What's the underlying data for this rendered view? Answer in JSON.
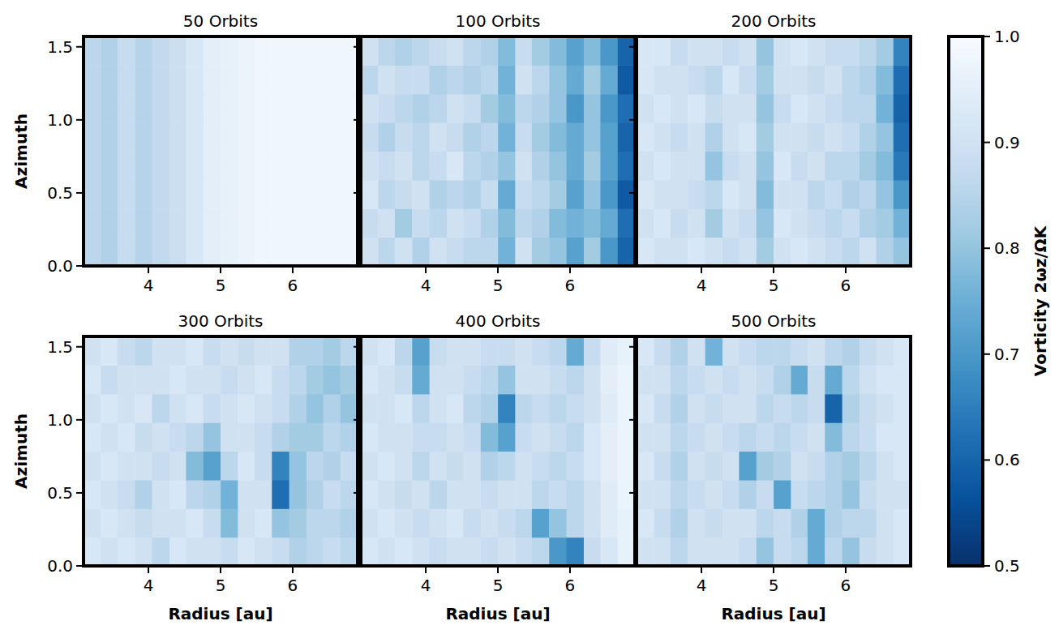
{
  "chart_data": {
    "type": "heatmap",
    "x_label": "Radius [au]",
    "y_label": "Azimuth",
    "xlim": [
      3.1,
      6.9
    ],
    "ylim": [
      0,
      1.5708
    ],
    "xticks": [
      4,
      5,
      6
    ],
    "yticks": [
      {
        "value": 0,
        "label": "0.0"
      },
      0.5,
      {
        "value": 1,
        "label": "1.0"
      },
      1.5
    ],
    "x": [
      3.22,
      3.46,
      3.69,
      3.93,
      4.17,
      4.41,
      4.64,
      4.88,
      5.12,
      5.36,
      5.59,
      5.83,
      6.07,
      6.31,
      6.54,
      6.78
    ],
    "y": [
      0.098,
      0.295,
      0.491,
      0.687,
      0.884,
      1.08,
      1.276,
      1.473
    ],
    "colorbar": {
      "label": "Vorticity 2ωz/ΩK",
      "range": [
        0.5,
        1.0
      ],
      "ticks": [
        0.5,
        0.6,
        0.7,
        0.8,
        0.9,
        {
          "value": 1,
          "label": "1.0"
        }
      ]
    },
    "panels": [
      {
        "title": "50 Orbits",
        "cells": [
          [
            0.86,
            0.84,
            0.88,
            0.85,
            0.87,
            0.89,
            0.92,
            0.95,
            0.96,
            0.97,
            0.98,
            0.98,
            0.98,
            0.98,
            0.98,
            0.98
          ],
          [
            0.86,
            0.84,
            0.88,
            0.85,
            0.87,
            0.89,
            0.92,
            0.95,
            0.96,
            0.97,
            0.98,
            0.98,
            0.98,
            0.98,
            0.98,
            0.98
          ],
          [
            0.86,
            0.84,
            0.88,
            0.85,
            0.87,
            0.89,
            0.92,
            0.95,
            0.96,
            0.97,
            0.98,
            0.98,
            0.98,
            0.98,
            0.98,
            0.98
          ],
          [
            0.86,
            0.84,
            0.88,
            0.85,
            0.87,
            0.89,
            0.92,
            0.95,
            0.96,
            0.97,
            0.98,
            0.98,
            0.98,
            0.98,
            0.98,
            0.98
          ],
          [
            0.86,
            0.84,
            0.88,
            0.85,
            0.87,
            0.89,
            0.92,
            0.95,
            0.96,
            0.97,
            0.98,
            0.98,
            0.98,
            0.98,
            0.98,
            0.98
          ],
          [
            0.86,
            0.84,
            0.88,
            0.85,
            0.87,
            0.89,
            0.92,
            0.95,
            0.96,
            0.97,
            0.98,
            0.98,
            0.98,
            0.98,
            0.98,
            0.98
          ],
          [
            0.86,
            0.84,
            0.88,
            0.85,
            0.87,
            0.89,
            0.92,
            0.95,
            0.96,
            0.97,
            0.98,
            0.98,
            0.98,
            0.98,
            0.98,
            0.98
          ],
          [
            0.86,
            0.84,
            0.88,
            0.85,
            0.87,
            0.89,
            0.92,
            0.95,
            0.96,
            0.97,
            0.98,
            0.98,
            0.98,
            0.98,
            0.98,
            0.98
          ]
        ]
      },
      {
        "title": "100 Orbits",
        "cells": [
          [
            0.9,
            0.86,
            0.9,
            0.84,
            0.9,
            0.88,
            0.86,
            0.86,
            0.76,
            0.9,
            0.82,
            0.8,
            0.72,
            0.82,
            0.7,
            0.6
          ],
          [
            0.88,
            0.9,
            0.82,
            0.88,
            0.86,
            0.9,
            0.88,
            0.84,
            0.78,
            0.86,
            0.84,
            0.78,
            0.76,
            0.78,
            0.74,
            0.62
          ],
          [
            0.92,
            0.86,
            0.88,
            0.9,
            0.84,
            0.86,
            0.84,
            0.88,
            0.74,
            0.88,
            0.86,
            0.82,
            0.72,
            0.8,
            0.7,
            0.58
          ],
          [
            0.9,
            0.88,
            0.9,
            0.86,
            0.88,
            0.92,
            0.86,
            0.84,
            0.8,
            0.9,
            0.84,
            0.8,
            0.74,
            0.82,
            0.72,
            0.62
          ],
          [
            0.88,
            0.84,
            0.88,
            0.86,
            0.9,
            0.88,
            0.84,
            0.86,
            0.76,
            0.88,
            0.82,
            0.78,
            0.74,
            0.8,
            0.72,
            0.6
          ],
          [
            0.9,
            0.88,
            0.86,
            0.84,
            0.86,
            0.9,
            0.88,
            0.82,
            0.78,
            0.86,
            0.84,
            0.8,
            0.7,
            0.8,
            0.7,
            0.62
          ],
          [
            0.86,
            0.9,
            0.88,
            0.88,
            0.84,
            0.86,
            0.84,
            0.86,
            0.76,
            0.9,
            0.86,
            0.8,
            0.74,
            0.82,
            0.74,
            0.58
          ],
          [
            0.9,
            0.86,
            0.84,
            0.86,
            0.88,
            0.9,
            0.86,
            0.84,
            0.78,
            0.88,
            0.82,
            0.78,
            0.72,
            0.78,
            0.7,
            0.6
          ]
        ]
      },
      {
        "title": "200 Orbits",
        "cells": [
          [
            0.92,
            0.9,
            0.9,
            0.92,
            0.9,
            0.88,
            0.9,
            0.82,
            0.9,
            0.92,
            0.9,
            0.88,
            0.86,
            0.9,
            0.84,
            0.8
          ],
          [
            0.9,
            0.92,
            0.88,
            0.9,
            0.82,
            0.9,
            0.88,
            0.8,
            0.92,
            0.9,
            0.88,
            0.86,
            0.88,
            0.84,
            0.82,
            0.76
          ],
          [
            0.92,
            0.9,
            0.9,
            0.88,
            0.86,
            0.92,
            0.9,
            0.78,
            0.9,
            0.9,
            0.86,
            0.88,
            0.84,
            0.86,
            0.8,
            0.7
          ],
          [
            0.9,
            0.92,
            0.9,
            0.9,
            0.8,
            0.88,
            0.9,
            0.8,
            0.92,
            0.88,
            0.9,
            0.86,
            0.86,
            0.82,
            0.78,
            0.64
          ],
          [
            0.92,
            0.9,
            0.88,
            0.9,
            0.84,
            0.9,
            0.92,
            0.82,
            0.9,
            0.9,
            0.88,
            0.9,
            0.88,
            0.84,
            0.8,
            0.62
          ],
          [
            0.9,
            0.92,
            0.9,
            0.92,
            0.88,
            0.9,
            0.9,
            0.8,
            0.88,
            0.92,
            0.9,
            0.88,
            0.86,
            0.86,
            0.76,
            0.6
          ],
          [
            0.92,
            0.9,
            0.9,
            0.88,
            0.86,
            0.92,
            0.88,
            0.82,
            0.9,
            0.9,
            0.88,
            0.9,
            0.86,
            0.84,
            0.78,
            0.62
          ],
          [
            0.92,
            0.92,
            0.88,
            0.9,
            0.9,
            0.88,
            0.9,
            0.8,
            0.9,
            0.92,
            0.9,
            0.88,
            0.88,
            0.86,
            0.82,
            0.66
          ]
        ]
      },
      {
        "title": "300 Orbits",
        "cells": [
          [
            0.92,
            0.9,
            0.92,
            0.9,
            0.86,
            0.92,
            0.9,
            0.9,
            0.88,
            0.92,
            0.9,
            0.88,
            0.84,
            0.86,
            0.88,
            0.86
          ],
          [
            0.9,
            0.92,
            0.9,
            0.88,
            0.9,
            0.9,
            0.92,
            0.88,
            0.78,
            0.9,
            0.92,
            0.8,
            0.82,
            0.86,
            0.86,
            0.84
          ],
          [
            0.92,
            0.9,
            0.88,
            0.84,
            0.9,
            0.92,
            0.86,
            0.84,
            0.76,
            0.9,
            0.9,
            0.62,
            0.8,
            0.84,
            0.88,
            0.86
          ],
          [
            0.9,
            0.92,
            0.9,
            0.9,
            0.88,
            0.9,
            0.78,
            0.72,
            0.86,
            0.92,
            0.88,
            0.66,
            0.8,
            0.86,
            0.84,
            0.88
          ],
          [
            0.92,
            0.9,
            0.92,
            0.88,
            0.9,
            0.88,
            0.86,
            0.8,
            0.9,
            0.9,
            0.88,
            0.84,
            0.82,
            0.82,
            0.86,
            0.84
          ],
          [
            0.9,
            0.92,
            0.9,
            0.92,
            0.86,
            0.9,
            0.92,
            0.88,
            0.9,
            0.92,
            0.9,
            0.88,
            0.84,
            0.8,
            0.84,
            0.8
          ],
          [
            0.92,
            0.88,
            0.9,
            0.9,
            0.9,
            0.92,
            0.9,
            0.9,
            0.88,
            0.9,
            0.92,
            0.88,
            0.86,
            0.82,
            0.8,
            0.82
          ],
          [
            0.9,
            0.92,
            0.88,
            0.86,
            0.9,
            0.9,
            0.92,
            0.88,
            0.9,
            0.88,
            0.9,
            0.9,
            0.84,
            0.84,
            0.82,
            0.86
          ]
        ]
      },
      {
        "title": "400 Orbits",
        "cells": [
          [
            0.92,
            0.9,
            0.92,
            0.9,
            0.88,
            0.9,
            0.9,
            0.88,
            0.9,
            0.88,
            0.86,
            0.7,
            0.66,
            0.88,
            0.92,
            0.96
          ],
          [
            0.9,
            0.92,
            0.9,
            0.88,
            0.9,
            0.92,
            0.88,
            0.9,
            0.88,
            0.86,
            0.72,
            0.8,
            0.86,
            0.9,
            0.94,
            0.96
          ],
          [
            0.92,
            0.9,
            0.88,
            0.9,
            0.86,
            0.9,
            0.9,
            0.88,
            0.9,
            0.9,
            0.86,
            0.88,
            0.86,
            0.9,
            0.94,
            0.97
          ],
          [
            0.9,
            0.92,
            0.9,
            0.86,
            0.9,
            0.88,
            0.9,
            0.84,
            0.86,
            0.9,
            0.88,
            0.86,
            0.88,
            0.92,
            0.95,
            0.97
          ],
          [
            0.92,
            0.9,
            0.9,
            0.88,
            0.88,
            0.9,
            0.88,
            0.78,
            0.72,
            0.88,
            0.9,
            0.88,
            0.86,
            0.92,
            0.95,
            0.97
          ],
          [
            0.9,
            0.9,
            0.92,
            0.86,
            0.9,
            0.92,
            0.86,
            0.84,
            0.66,
            0.86,
            0.88,
            0.86,
            0.88,
            0.9,
            0.94,
            0.97
          ],
          [
            0.92,
            0.9,
            0.88,
            0.74,
            0.9,
            0.9,
            0.88,
            0.86,
            0.8,
            0.9,
            0.9,
            0.88,
            0.86,
            0.9,
            0.95,
            0.97
          ],
          [
            0.9,
            0.92,
            0.86,
            0.72,
            0.88,
            0.9,
            0.9,
            0.88,
            0.88,
            0.9,
            0.88,
            0.86,
            0.74,
            0.88,
            0.94,
            0.96
          ]
        ]
      },
      {
        "title": "500 Orbits",
        "cells": [
          [
            0.9,
            0.9,
            0.86,
            0.9,
            0.9,
            0.9,
            0.88,
            0.8,
            0.88,
            0.86,
            0.74,
            0.86,
            0.8,
            0.88,
            0.9,
            0.92
          ],
          [
            0.92,
            0.88,
            0.84,
            0.9,
            0.88,
            0.9,
            0.9,
            0.86,
            0.88,
            0.84,
            0.74,
            0.84,
            0.86,
            0.86,
            0.9,
            0.92
          ],
          [
            0.9,
            0.9,
            0.86,
            0.88,
            0.9,
            0.88,
            0.84,
            0.88,
            0.72,
            0.88,
            0.86,
            0.84,
            0.8,
            0.88,
            0.9,
            0.9
          ],
          [
            0.92,
            0.88,
            0.84,
            0.9,
            0.88,
            0.9,
            0.72,
            0.82,
            0.84,
            0.9,
            0.88,
            0.84,
            0.82,
            0.86,
            0.9,
            0.92
          ],
          [
            0.9,
            0.9,
            0.86,
            0.88,
            0.9,
            0.88,
            0.86,
            0.88,
            0.86,
            0.88,
            0.9,
            0.78,
            0.86,
            0.88,
            0.92,
            0.92
          ],
          [
            0.92,
            0.88,
            0.84,
            0.9,
            0.88,
            0.9,
            0.9,
            0.86,
            0.88,
            0.86,
            0.88,
            0.6,
            0.84,
            0.88,
            0.9,
            0.92
          ],
          [
            0.9,
            0.9,
            0.86,
            0.88,
            0.9,
            0.88,
            0.9,
            0.88,
            0.84,
            0.74,
            0.88,
            0.74,
            0.86,
            0.9,
            0.92,
            0.92
          ],
          [
            0.92,
            0.88,
            0.84,
            0.9,
            0.76,
            0.9,
            0.88,
            0.86,
            0.86,
            0.88,
            0.9,
            0.86,
            0.84,
            0.88,
            0.9,
            0.92
          ]
        ]
      }
    ]
  }
}
